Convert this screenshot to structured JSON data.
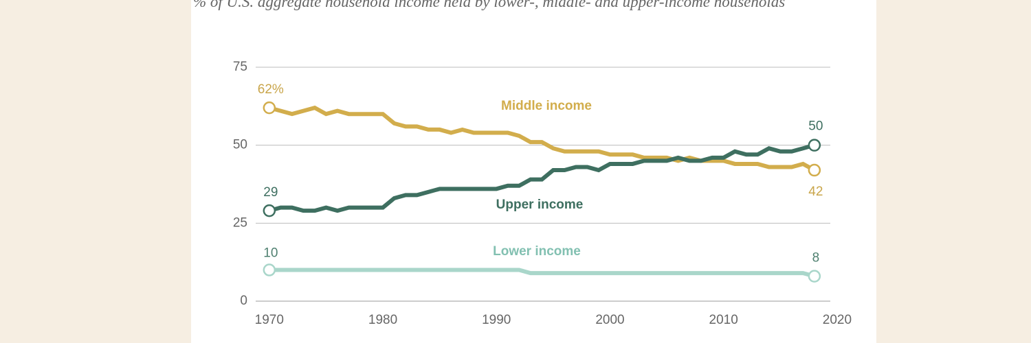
{
  "chart_data": {
    "type": "line",
    "subtitle": "% of U.S. aggregate household income held by lower-, middle- and upper-income households",
    "x": [
      1970,
      1971,
      1972,
      1973,
      1974,
      1975,
      1976,
      1977,
      1978,
      1979,
      1980,
      1981,
      1982,
      1983,
      1984,
      1985,
      1986,
      1987,
      1988,
      1989,
      1990,
      1991,
      1992,
      1993,
      1994,
      1995,
      1996,
      1997,
      1998,
      1999,
      2000,
      2001,
      2002,
      2003,
      2004,
      2005,
      2006,
      2007,
      2008,
      2009,
      2010,
      2011,
      2012,
      2013,
      2014,
      2015,
      2016,
      2017,
      2018
    ],
    "series": [
      {
        "name": "Middle income",
        "color": "#d2ad4c",
        "values": [
          62,
          61,
          60,
          61,
          62,
          60,
          61,
          60,
          60,
          60,
          60,
          57,
          56,
          56,
          55,
          55,
          54,
          55,
          54,
          54,
          54,
          54,
          53,
          51,
          51,
          49,
          48,
          48,
          48,
          48,
          47,
          47,
          47,
          46,
          46,
          46,
          45,
          46,
          45,
          45,
          45,
          44,
          44,
          44,
          43,
          43,
          43,
          44,
          42
        ],
        "value_labels": [
          "62%",
          null,
          null,
          null,
          null,
          null,
          null,
          null,
          null,
          null,
          null,
          null,
          null,
          null,
          null,
          null,
          null,
          null,
          null,
          null,
          null,
          null,
          null,
          null,
          null,
          null,
          null,
          null,
          null,
          null,
          null,
          null,
          null,
          null,
          null,
          null,
          null,
          null,
          null,
          null,
          null,
          null,
          null,
          null,
          null,
          null,
          null,
          null,
          "42"
        ]
      },
      {
        "name": "Upper income",
        "color": "#3e6f60",
        "values": [
          29,
          30,
          30,
          29,
          29,
          30,
          29,
          30,
          30,
          30,
          30,
          33,
          34,
          34,
          35,
          36,
          36,
          36,
          36,
          36,
          36,
          37,
          37,
          39,
          39,
          42,
          42,
          43,
          43,
          42,
          44,
          44,
          44,
          45,
          45,
          45,
          46,
          45,
          45,
          46,
          46,
          48,
          47,
          47,
          49,
          48,
          48,
          49,
          50
        ],
        "value_labels": [
          "29",
          null,
          null,
          null,
          null,
          null,
          null,
          null,
          null,
          null,
          null,
          null,
          null,
          null,
          null,
          null,
          null,
          null,
          null,
          null,
          null,
          null,
          null,
          null,
          null,
          null,
          null,
          null,
          null,
          null,
          null,
          null,
          null,
          null,
          null,
          null,
          null,
          null,
          null,
          null,
          null,
          null,
          null,
          null,
          null,
          null,
          null,
          null,
          "50"
        ]
      },
      {
        "name": "Lower income",
        "color": "#a9d6ca",
        "values": [
          10,
          10,
          10,
          10,
          10,
          10,
          10,
          10,
          10,
          10,
          10,
          10,
          10,
          10,
          10,
          10,
          10,
          10,
          10,
          10,
          10,
          10,
          10,
          9,
          9,
          9,
          9,
          9,
          9,
          9,
          9,
          9,
          9,
          9,
          9,
          9,
          9,
          9,
          9,
          9,
          9,
          9,
          9,
          9,
          9,
          9,
          9,
          9,
          8
        ],
        "value_labels": [
          "10",
          null,
          null,
          null,
          null,
          null,
          null,
          null,
          null,
          null,
          null,
          null,
          null,
          null,
          null,
          null,
          null,
          null,
          null,
          null,
          null,
          null,
          null,
          null,
          null,
          null,
          null,
          null,
          null,
          null,
          null,
          null,
          null,
          null,
          null,
          null,
          null,
          null,
          null,
          null,
          null,
          null,
          null,
          null,
          null,
          null,
          null,
          null,
          "8"
        ]
      }
    ],
    "xlim": [
      1968.8,
      2019.4
    ],
    "xticks": [
      1970,
      1980,
      1990,
      2000,
      2010,
      2020
    ],
    "ylim": [
      0,
      75
    ],
    "yticks": [
      0,
      25,
      50,
      75
    ],
    "grid": true
  }
}
